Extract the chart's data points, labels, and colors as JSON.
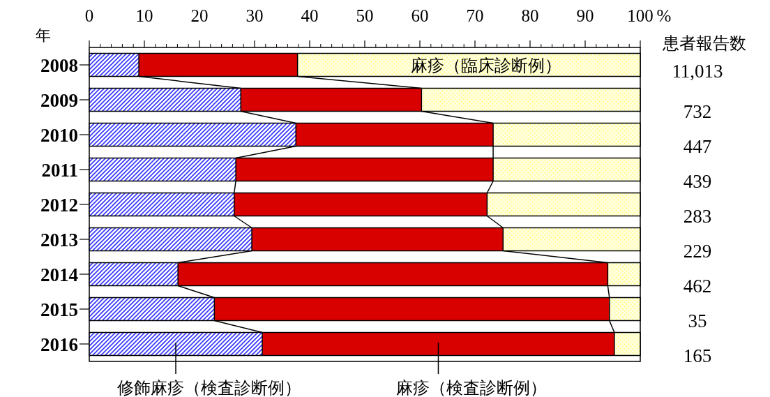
{
  "chart_data": {
    "type": "bar",
    "orientation": "horizontal",
    "stacked": true,
    "ylabel": "年",
    "xlabel": "%",
    "categories": [
      "2008",
      "2009",
      "2010",
      "2011",
      "2012",
      "2013",
      "2014",
      "2015",
      "2016"
    ],
    "series": [
      {
        "name": "修飾麻疹（検査診断例）",
        "color": "#3333ff",
        "values": [
          9.0,
          27.5,
          37.5,
          26.6,
          26.3,
          29.5,
          16.1,
          22.7,
          31.4
        ]
      },
      {
        "name": "麻疹（検査診断例）",
        "color": "#d90000",
        "values": [
          28.8,
          32.8,
          35.8,
          46.7,
          45.9,
          45.6,
          78.0,
          71.7,
          63.9
        ]
      },
      {
        "name": "麻疹（臨床診断例）",
        "color": "#ffff66",
        "values": [
          62.2,
          39.7,
          26.7,
          26.7,
          27.8,
          24.9,
          5.9,
          5.6,
          4.7
        ]
      }
    ],
    "xlim": [
      0,
      100
    ],
    "xticks": [
      0,
      10,
      20,
      30,
      40,
      50,
      60,
      70,
      80,
      90,
      100
    ],
    "annotations": [
      "患者報告数",
      "11,013",
      "732",
      "447",
      "439",
      "283",
      "229",
      "462",
      "35",
      "165"
    ],
    "legend": false
  }
}
